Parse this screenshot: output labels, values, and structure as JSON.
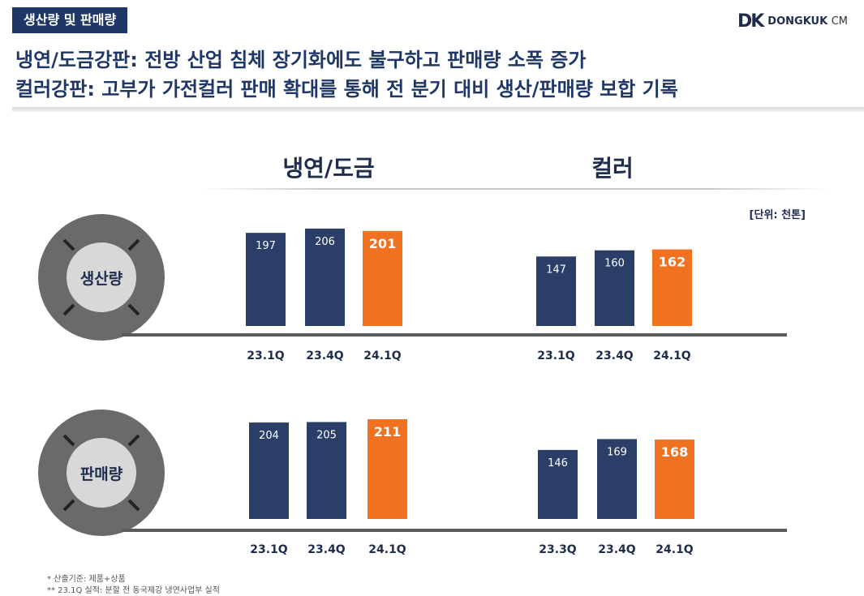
{
  "header": {
    "tag": "생산량 및 판매량",
    "logo_mark": "DK",
    "logo_word": "DONGKUK",
    "logo_suffix": "CM",
    "headline_1": "냉연/도금강판: 전방 산업 침체 장기화에도 불구하고 판매량 소폭 증가",
    "headline_2": "컬러강판: 고부가 가전컬러 판매 확대를 통해 전 분기 대비 생산/판매량 보합 기록"
  },
  "groups": {
    "left_title": "냉연/도금",
    "right_title": "컬러"
  },
  "unit": "[단위: 천톤]",
  "rows": {
    "production_label": "생산량",
    "sales_label": "판매량"
  },
  "colors": {
    "navy": "#2b3e68",
    "orange": "#f07221",
    "ring": "#6a6a6a",
    "ring_inner": "#d8d8d8"
  },
  "footnotes": {
    "note_1": "* 산출기준: 제품+상품",
    "note_2": "** 23.1Q 실적: 분할 전 동국제강 냉연사업부 실적"
  },
  "chart_data": [
    {
      "type": "bar",
      "title": "냉연/도금 생산량",
      "categories": [
        "23.1Q",
        "23.4Q",
        "24.1Q"
      ],
      "values": [
        197,
        206,
        201
      ],
      "highlight_index": 2
    },
    {
      "type": "bar",
      "title": "컬러 생산량",
      "categories": [
        "23.1Q",
        "23.4Q",
        "24.1Q"
      ],
      "values": [
        147,
        160,
        162
      ],
      "highlight_index": 2
    },
    {
      "type": "bar",
      "title": "냉연/도금 판매량",
      "categories": [
        "23.1Q",
        "23.4Q",
        "24.1Q"
      ],
      "values": [
        204,
        205,
        211
      ],
      "highlight_index": 2
    },
    {
      "type": "bar",
      "title": "컬러 판매량",
      "categories": [
        "23.3Q",
        "23.4Q",
        "24.1Q"
      ],
      "values": [
        146,
        169,
        168
      ],
      "highlight_index": 2
    }
  ]
}
